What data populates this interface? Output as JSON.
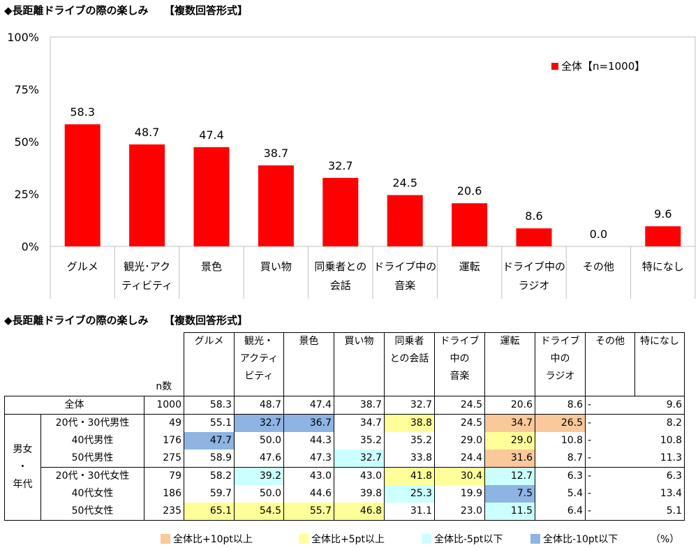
{
  "titles": {
    "chart": "◆長距離ドライブの際の楽しみ　　【複数回答形式】",
    "table": "◆長距離ドライブの際の楽しみ　　【複数回答形式】"
  },
  "chart_data": {
    "type": "bar",
    "categories": [
      "グルメ",
      "観光･アクティビティ",
      "景色",
      "買い物",
      "同乗者との会話",
      "ドライブ中の音楽",
      "運転",
      "ドライブ中のラジオ",
      "その他",
      "特になし"
    ],
    "category_lines": [
      [
        "グルメ"
      ],
      [
        "観光･アク",
        "ティビティ"
      ],
      [
        "景色"
      ],
      [
        "買い物"
      ],
      [
        "同乗者との",
        "会話"
      ],
      [
        "ドライブ中の",
        "音楽"
      ],
      [
        "運転"
      ],
      [
        "ドライブ中の",
        "ラジオ"
      ],
      [
        "その他"
      ],
      [
        "特になし"
      ]
    ],
    "series": [
      {
        "name": "全体【n=1000】",
        "values": [
          58.3,
          48.7,
          47.4,
          38.7,
          32.7,
          24.5,
          20.6,
          8.6,
          0.0,
          9.6
        ],
        "color": "#ff0000"
      }
    ],
    "value_labels": [
      "58.3",
      "48.7",
      "47.4",
      "38.7",
      "32.7",
      "24.5",
      "20.6",
      "8.6",
      "0.0",
      "9.6"
    ],
    "yticks": [
      "0%",
      "25%",
      "50%",
      "75%",
      "100%"
    ],
    "ylim": [
      0,
      100
    ],
    "legend_position": "top-right",
    "grid": false
  },
  "table": {
    "n_header": "n数",
    "columns": [
      "グルメ",
      "観光・アクティビティ",
      "景色",
      "買い物",
      "同乗者との会話",
      "ドライブ中の音楽",
      "運転",
      "ドライブ中のラジオ",
      "その他",
      "特になし"
    ],
    "column_lines": [
      [
        "グルメ"
      ],
      [
        "観光・",
        "アクティ",
        "ビティ"
      ],
      [
        "景色"
      ],
      [
        "買い物"
      ],
      [
        "同乗者",
        "との会話"
      ],
      [
        "ドライブ",
        "中の",
        "音楽"
      ],
      [
        "運転"
      ],
      [
        "ドライブ",
        "中の",
        "ラジオ"
      ],
      [
        "その他"
      ],
      [
        "特になし"
      ]
    ],
    "group_label": [
      "男女",
      "・",
      "年代"
    ],
    "rows": [
      {
        "label": "全体",
        "n": "1000",
        "values": [
          "58.3",
          "48.7",
          "47.4",
          "38.7",
          "32.7",
          "24.5",
          "20.6",
          "8.6",
          "-",
          "9.6"
        ],
        "hl": [
          "",
          "",
          "",
          "",
          "",
          "",
          "",
          "",
          "",
          ""
        ]
      },
      {
        "label": "20代・30代男性",
        "n": "49",
        "values": [
          "55.1",
          "32.7",
          "36.7",
          "34.7",
          "38.8",
          "24.5",
          "34.7",
          "26.5",
          "-",
          "8.2"
        ],
        "hl": [
          "",
          "lo10",
          "lo10",
          "",
          "hi5",
          "",
          "hi10",
          "hi10",
          "",
          ""
        ]
      },
      {
        "label": "40代男性",
        "n": "176",
        "values": [
          "47.7",
          "50.0",
          "44.3",
          "35.2",
          "35.2",
          "29.0",
          "29.0",
          "10.8",
          "-",
          "10.8"
        ],
        "hl": [
          "lo10",
          "",
          "",
          "",
          "",
          "",
          "hi5",
          "",
          "",
          ""
        ]
      },
      {
        "label": "50代男性",
        "n": "275",
        "values": [
          "58.9",
          "47.6",
          "47.3",
          "32.7",
          "33.8",
          "24.4",
          "31.6",
          "8.7",
          "-",
          "11.3"
        ],
        "hl": [
          "",
          "",
          "",
          "lo5",
          "",
          "",
          "hi10",
          "",
          "",
          ""
        ]
      },
      {
        "label": "20代・30代女性",
        "n": "79",
        "values": [
          "58.2",
          "39.2",
          "43.0",
          "43.0",
          "41.8",
          "30.4",
          "12.7",
          "6.3",
          "-",
          "6.3"
        ],
        "hl": [
          "",
          "lo5",
          "",
          "",
          "hi5",
          "hi5",
          "lo5",
          "",
          "",
          ""
        ]
      },
      {
        "label": "40代女性",
        "n": "186",
        "values": [
          "59.7",
          "50.0",
          "44.6",
          "39.8",
          "25.3",
          "19.9",
          "7.5",
          "5.4",
          "-",
          "13.4"
        ],
        "hl": [
          "",
          "",
          "",
          "",
          "lo5",
          "",
          "lo10",
          "",
          "",
          ""
        ]
      },
      {
        "label": "50代女性",
        "n": "235",
        "values": [
          "65.1",
          "54.5",
          "55.7",
          "46.8",
          "31.1",
          "23.0",
          "11.5",
          "6.4",
          "-",
          "5.1"
        ],
        "hl": [
          "hi5",
          "hi5",
          "hi5",
          "hi5",
          "",
          "",
          "lo5",
          "",
          "",
          ""
        ]
      }
    ]
  },
  "legend": {
    "items": [
      {
        "label": "全体比+10pt以上",
        "color": "#f9c89b"
      },
      {
        "label": "全体比+5pt以上",
        "color": "#ffff99"
      },
      {
        "label": "全体比-5pt以下",
        "color": "#ccffff"
      },
      {
        "label": "全体比-10pt以下",
        "color": "#8db4e2"
      }
    ],
    "unit": "（%）"
  }
}
